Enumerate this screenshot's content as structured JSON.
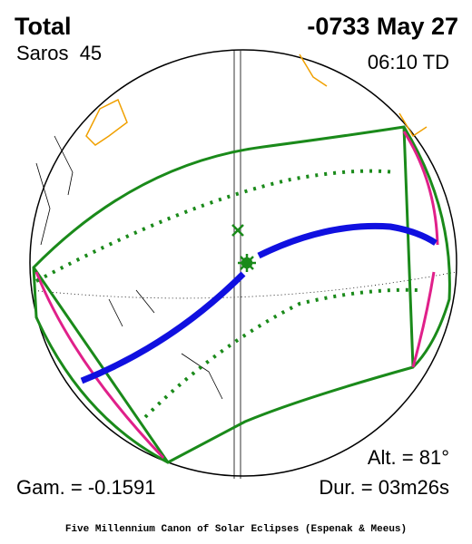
{
  "header": {
    "type": "Total",
    "date": "-0733 May 27",
    "saros": "Saros  45",
    "time": "06:10 TD"
  },
  "stats": {
    "altitude": "Alt. = 81°",
    "gamma": "Gam. = -0.1591",
    "duration": "Dur. = 03m26s"
  },
  "footer": "Five Millennium Canon of Solar Eclipses (Espenak & Meeus)"
}
